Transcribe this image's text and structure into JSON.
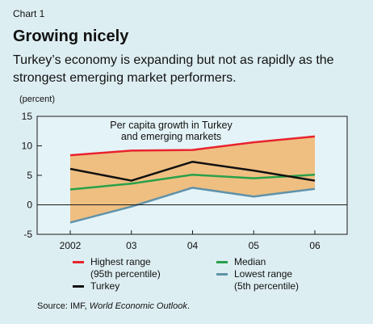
{
  "header": {
    "chart_number": "Chart 1",
    "title": "Growing nicely",
    "subtitle": "Turkey’s economy is expanding but not as rapidly as the strongest emerging market performers."
  },
  "chart_data": {
    "type": "area",
    "title": "Per capita growth in Turkey and emerging markets",
    "title_lines": [
      "Per capita growth in Turkey",
      "and emerging markets"
    ],
    "ylabel": "(percent)",
    "categories": [
      "2002",
      "03",
      "04",
      "05",
      "06"
    ],
    "ylim": [
      -5,
      15
    ],
    "yticks": [
      -5,
      0,
      5,
      10,
      15
    ],
    "grid": false,
    "band": {
      "between": [
        "Highest range",
        "Lowest range"
      ],
      "color": "#efbf82"
    },
    "series": [
      {
        "name": "Highest range",
        "note": "(95th percentile)",
        "color": "#e8232e",
        "values": [
          8.4,
          9.2,
          9.3,
          10.6,
          11.6
        ]
      },
      {
        "name": "Median",
        "color": "#2aa04a",
        "values": [
          2.6,
          3.6,
          5.1,
          4.5,
          5.1
        ]
      },
      {
        "name": "Lowest range",
        "note": "(5th percentile)",
        "color": "#5f92a9",
        "values": [
          -3.0,
          -0.3,
          2.9,
          1.4,
          2.7
        ]
      },
      {
        "name": "Turkey",
        "color": "#111111",
        "values": [
          6.1,
          4.1,
          7.3,
          5.8,
          4.1
        ]
      }
    ]
  },
  "source": {
    "prefix": "Source: IMF, ",
    "publication": "World Economic Outlook",
    "suffix": "."
  }
}
